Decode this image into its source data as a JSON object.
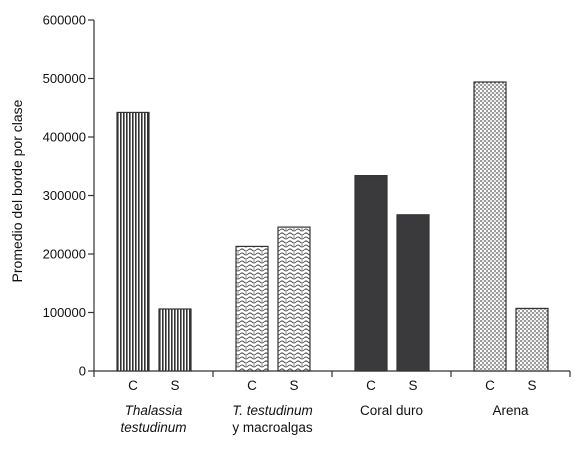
{
  "chart_data": {
    "type": "bar",
    "ylabel": "Promedio del borde por clase",
    "ylim": [
      0,
      600000
    ],
    "yticks": [
      "0",
      "100000",
      "200000",
      "300000",
      "400000",
      "500000",
      "600000"
    ],
    "grid": false,
    "legend": "none",
    "groups": [
      {
        "label_lines": [
          {
            "text": "Thalassia",
            "italic": true
          },
          {
            "text": "testudinum",
            "italic": true
          }
        ],
        "pattern": "vertical-stripes"
      },
      {
        "label_lines": [
          {
            "text": "T. testudinum",
            "italic": true
          },
          {
            "text": "y macroalgas",
            "italic": false
          }
        ],
        "pattern": "wave-check"
      },
      {
        "label_lines": [
          {
            "text": "Coral duro",
            "italic": false
          }
        ],
        "pattern": "solid-dark"
      },
      {
        "label_lines": [
          {
            "text": "Arena",
            "italic": false
          }
        ],
        "pattern": "stipple"
      }
    ],
    "categories": [
      "C",
      "S",
      "C",
      "S",
      "C",
      "S",
      "C",
      "S"
    ],
    "values": [
      442000,
      106000,
      213000,
      246000,
      334000,
      267000,
      494000,
      107000
    ],
    "colors": {
      "axis": "#333333",
      "bar_stroke": "#333333",
      "solid_fill": "#3a3a3c"
    }
  }
}
